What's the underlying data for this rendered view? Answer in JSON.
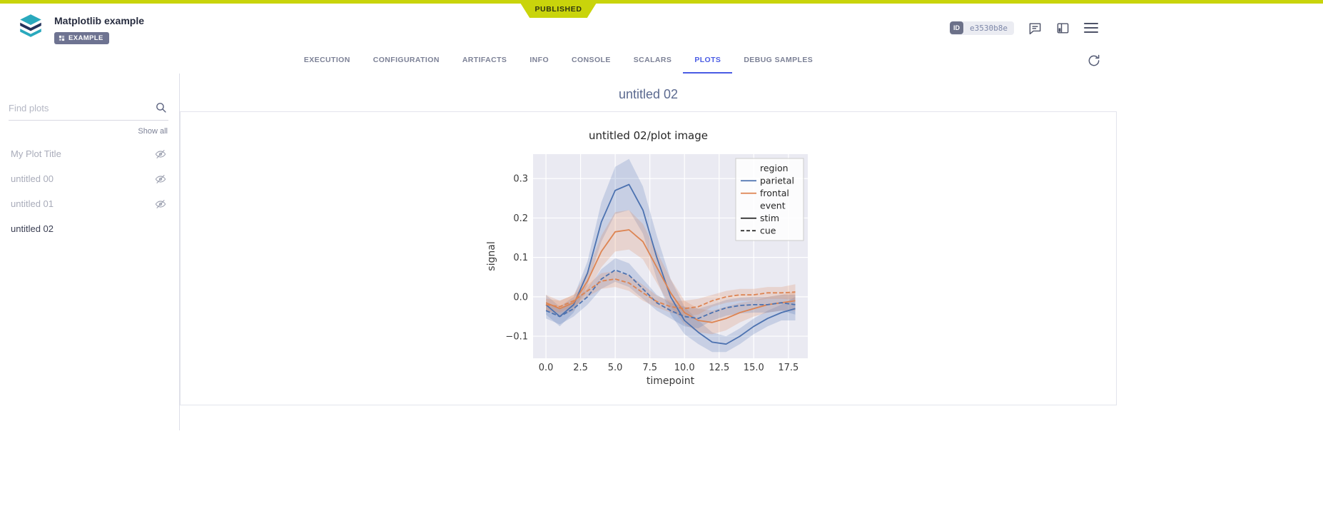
{
  "ribbon": {
    "status": "PUBLISHED"
  },
  "colors": {
    "accent": "#4a5ce4",
    "ribbon_green": "#c9d40b",
    "series_blue": "#4c72b0",
    "series_orange": "#dd8452"
  },
  "header": {
    "title": "Matplotlib example",
    "tag": "EXAMPLE",
    "id_label": "ID",
    "id_value": "e3530b8e"
  },
  "tabs": {
    "items": [
      "EXECUTION",
      "CONFIGURATION",
      "ARTIFACTS",
      "INFO",
      "CONSOLE",
      "SCALARS",
      "PLOTS",
      "DEBUG SAMPLES"
    ],
    "active": "PLOTS"
  },
  "sidebar": {
    "search_placeholder": "Find plots",
    "show_all": "Show all",
    "items": [
      {
        "label": "My Plot Title",
        "hidden": true
      },
      {
        "label": "untitled 00",
        "hidden": true
      },
      {
        "label": "untitled 01",
        "hidden": true
      },
      {
        "label": "untitled 02",
        "hidden": false,
        "active": true
      }
    ]
  },
  "main": {
    "group_title": "untitled 02"
  },
  "chart_data": {
    "type": "line",
    "title": "untitled 02/plot image",
    "xlabel": "timepoint",
    "ylabel": "signal",
    "xlim": [
      -0.93,
      18.9
    ],
    "ylim": [
      -0.156,
      0.362
    ],
    "xticks": [
      0.0,
      2.5,
      5.0,
      7.5,
      10.0,
      12.5,
      15.0,
      17.5
    ],
    "yticks": [
      -0.1,
      0.0,
      0.1,
      0.2,
      0.3
    ],
    "background": "#eaeaf2",
    "grid_color": "#ffffff",
    "grid": true,
    "legend_position": "upper right",
    "x": [
      0,
      1,
      2,
      3,
      4,
      5,
      6,
      7,
      8,
      9,
      10,
      11,
      12,
      13,
      14,
      15,
      16,
      17,
      18
    ],
    "series": [
      {
        "name": "parietal/stim",
        "color": "#4c72b0",
        "dash": false,
        "values": [
          -0.02,
          -0.05,
          -0.02,
          0.06,
          0.19,
          0.27,
          0.285,
          0.22,
          0.1,
          0.0,
          -0.06,
          -0.09,
          -0.115,
          -0.12,
          -0.1,
          -0.075,
          -0.055,
          -0.04,
          -0.03
        ],
        "band": [
          0.025,
          0.025,
          0.02,
          0.03,
          0.05,
          0.06,
          0.065,
          0.06,
          0.055,
          0.045,
          0.035,
          0.03,
          0.025,
          0.02,
          0.02,
          0.02,
          0.02,
          0.02,
          0.03
        ]
      },
      {
        "name": "frontal/stim",
        "color": "#dd8452",
        "dash": false,
        "values": [
          -0.015,
          -0.03,
          -0.015,
          0.04,
          0.115,
          0.165,
          0.17,
          0.14,
          0.075,
          0.01,
          -0.04,
          -0.06,
          -0.065,
          -0.055,
          -0.04,
          -0.03,
          -0.02,
          -0.015,
          -0.01
        ],
        "band": [
          0.02,
          0.02,
          0.02,
          0.025,
          0.04,
          0.05,
          0.05,
          0.045,
          0.04,
          0.035,
          0.03,
          0.03,
          0.03,
          0.03,
          0.025,
          0.02,
          0.02,
          0.02,
          0.025
        ]
      },
      {
        "name": "parietal/cue",
        "color": "#4c72b0",
        "dash": true,
        "values": [
          -0.035,
          -0.05,
          -0.03,
          0.0,
          0.045,
          0.068,
          0.055,
          0.02,
          -0.015,
          -0.035,
          -0.05,
          -0.055,
          -0.04,
          -0.028,
          -0.022,
          -0.02,
          -0.02,
          -0.015,
          -0.02
        ],
        "band": [
          0.02,
          0.02,
          0.02,
          0.02,
          0.025,
          0.03,
          0.03,
          0.025,
          0.02,
          0.02,
          0.025,
          0.025,
          0.02,
          0.02,
          0.02,
          0.02,
          0.02,
          0.02,
          0.025
        ]
      },
      {
        "name": "frontal/cue",
        "color": "#dd8452",
        "dash": true,
        "values": [
          -0.02,
          -0.025,
          -0.01,
          0.015,
          0.04,
          0.045,
          0.035,
          0.01,
          -0.012,
          -0.025,
          -0.03,
          -0.025,
          -0.01,
          0.0,
          0.005,
          0.005,
          0.01,
          0.01,
          0.012
        ],
        "band": [
          0.015,
          0.015,
          0.015,
          0.015,
          0.02,
          0.02,
          0.02,
          0.02,
          0.015,
          0.015,
          0.02,
          0.02,
          0.015,
          0.015,
          0.015,
          0.015,
          0.015,
          0.015,
          0.02
        ]
      }
    ],
    "legend": [
      {
        "label": "region",
        "type": "title"
      },
      {
        "label": "parietal",
        "type": "line",
        "color": "#4c72b0",
        "dash": false
      },
      {
        "label": "frontal",
        "type": "line",
        "color": "#dd8452",
        "dash": false
      },
      {
        "label": "event",
        "type": "title"
      },
      {
        "label": "stim",
        "type": "line",
        "color": "#262626",
        "dash": false
      },
      {
        "label": "cue",
        "type": "line",
        "color": "#262626",
        "dash": true
      }
    ]
  }
}
